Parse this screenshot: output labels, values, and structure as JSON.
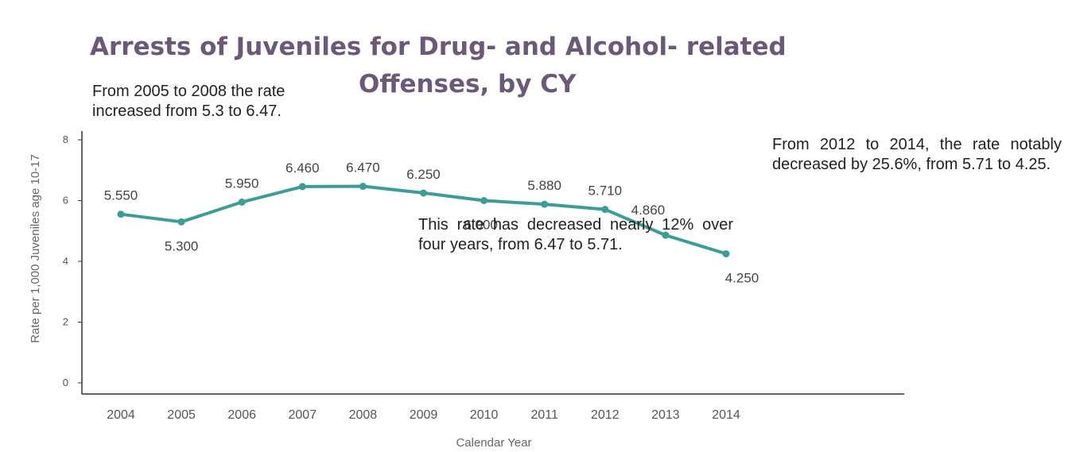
{
  "chart_data": {
    "type": "line",
    "title_line1": "Arrests of Juveniles for Drug- and Alcohol- related",
    "title_line2": "Offenses, by CY",
    "xlabel": "Calendar Year",
    "ylabel": "Rate per 1,000 Juveniles age 10-17",
    "ylim": [
      0,
      8
    ],
    "yticks": [
      0,
      2,
      4,
      6,
      8
    ],
    "grid": false,
    "color": "#3a9e94",
    "x": [
      "2004",
      "2005",
      "2006",
      "2007",
      "2008",
      "2009",
      "2010",
      "2011",
      "2012",
      "2013",
      "2014"
    ],
    "values": [
      5.55,
      5.3,
      5.95,
      6.46,
      6.47,
      6.25,
      6.0,
      5.88,
      5.71,
      4.86,
      4.25
    ],
    "data_labels": [
      "5.550",
      "5.300",
      "5.950",
      "6.460",
      "6.470",
      "6.250",
      "6.000",
      "5.880",
      "5.710",
      "4.860",
      "4.250"
    ]
  },
  "annotations": {
    "a1_line1": "From 2005 to 2008 the rate",
    "a1_line2": "increased from 5.3 to 6.47.",
    "a2": "This rate has decreased nearly 12% over four years, from 6.47 to 5.71.",
    "a3": "From 2012 to 2014, the rate notably decreased by 25.6%, from 5.71 to 4.25."
  }
}
